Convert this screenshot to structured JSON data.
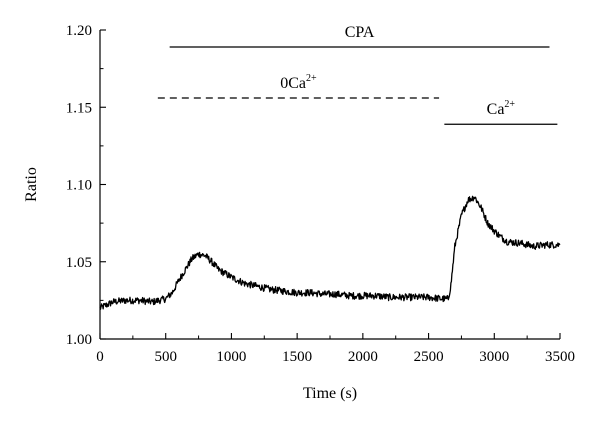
{
  "chart_data": {
    "type": "line",
    "title": "",
    "xlabel": "Time (s)",
    "ylabel": "Ratio",
    "xlim": [
      0,
      3500
    ],
    "ylim": [
      1.0,
      1.2
    ],
    "x_ticks": [
      0,
      500,
      1000,
      1500,
      2000,
      2500,
      3000,
      3500
    ],
    "x_tick_labels": [
      "0",
      "500",
      "1000",
      "1500",
      "2000",
      "2500",
      "3000",
      "3500"
    ],
    "y_ticks": [
      1.0,
      1.05,
      1.1,
      1.15,
      1.2
    ],
    "y_tick_labels": [
      "1.00",
      "1.05",
      "1.10",
      "1.15",
      "1.20"
    ],
    "grid": false,
    "legend": "none",
    "line_color": "#000000",
    "series": [
      {
        "x": [
          0,
          100,
          200,
          300,
          400,
          500,
          550,
          600,
          650,
          700,
          750,
          800,
          850,
          900,
          1000,
          1100,
          1200,
          1300,
          1400,
          1500,
          1600,
          1700,
          1800,
          1900,
          2000,
          2100,
          2200,
          2300,
          2400,
          2500,
          2600,
          2650,
          2670,
          2700,
          2750,
          2800,
          2850,
          2900,
          2950,
          3000,
          3050,
          3100,
          3200,
          3300,
          3400,
          3500
        ],
        "y": [
          1.02,
          1.024,
          1.025,
          1.025,
          1.024,
          1.026,
          1.03,
          1.038,
          1.045,
          1.052,
          1.055,
          1.054,
          1.05,
          1.045,
          1.04,
          1.036,
          1.034,
          1.032,
          1.031,
          1.03,
          1.03,
          1.029,
          1.029,
          1.028,
          1.028,
          1.028,
          1.027,
          1.027,
          1.027,
          1.027,
          1.026,
          1.026,
          1.035,
          1.06,
          1.08,
          1.09,
          1.092,
          1.085,
          1.075,
          1.07,
          1.066,
          1.063,
          1.062,
          1.06,
          1.061,
          1.061
        ]
      }
    ],
    "annotations": [
      {
        "id": "cpa",
        "text": "CPA",
        "x_start": 530,
        "x_end": 3420,
        "y": 1.189,
        "style": "solid"
      },
      {
        "id": "zero-ca",
        "text": "0Ca",
        "sup": "2+",
        "x_start": 440,
        "x_end": 2580,
        "y": 1.156,
        "style": "dashed"
      },
      {
        "id": "ca",
        "text": "Ca",
        "sup": "2+",
        "x_start": 2620,
        "x_end": 3480,
        "y": 1.139,
        "style": "solid"
      }
    ]
  }
}
